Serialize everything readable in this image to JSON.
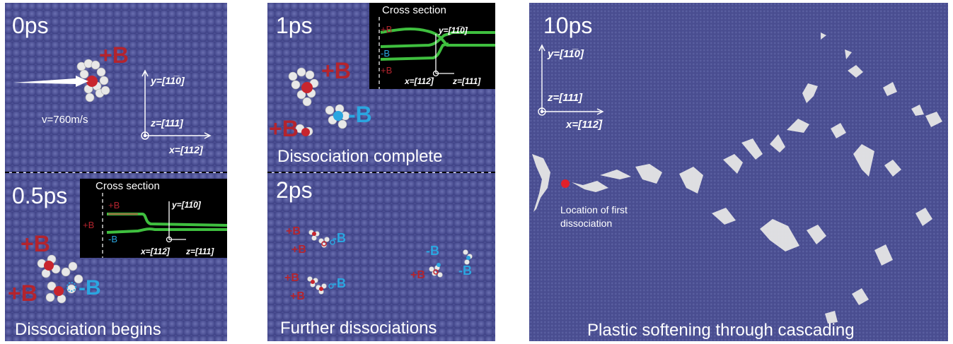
{
  "panels": {
    "p0": {
      "time": "0ps",
      "velocity": "v=760m/s"
    },
    "p05": {
      "time": "0.5ps",
      "caption": "Dissociation begins"
    },
    "p1": {
      "time": "1ps",
      "caption": "Dissociation complete"
    },
    "p2": {
      "time": "2ps",
      "caption": "Further dissociations"
    },
    "p10": {
      "time": "10ps",
      "caption": "Plastic softening through cascading",
      "note_line1": "Location of first",
      "note_line2": "dissociation"
    }
  },
  "labels": {
    "plus_b": "+B",
    "minus_b": "-B",
    "cross_section": "Cross section"
  },
  "axes": {
    "y": "y=[11̅0]",
    "z": "z=[111]",
    "x": "x=[112̅]"
  },
  "colors": {
    "plus": "#b3242e",
    "minus": "#2aa6e0",
    "matrix": "#4b4f93",
    "trace": "#3fbf3f"
  }
}
